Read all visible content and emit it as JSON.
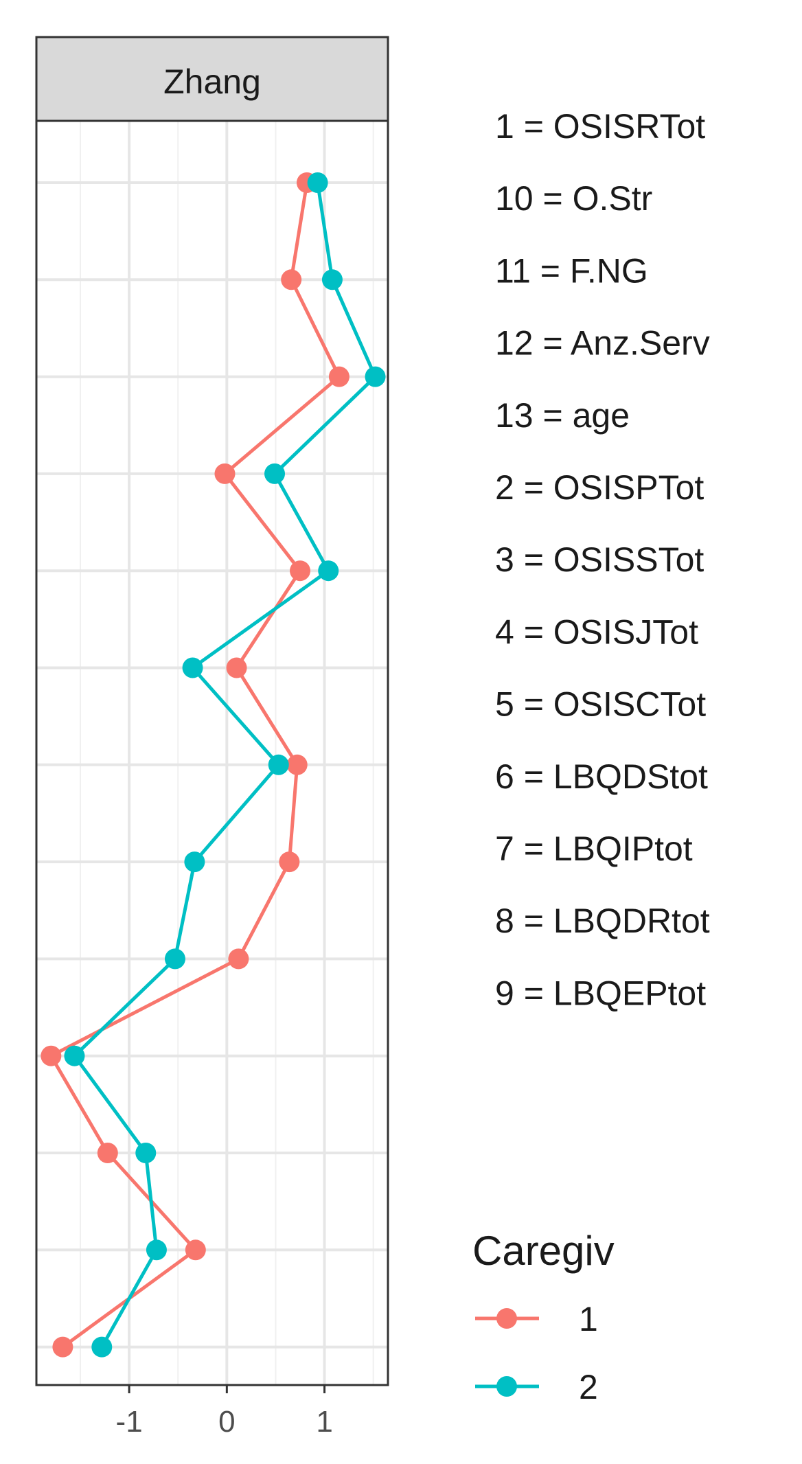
{
  "chart_data": {
    "type": "line",
    "facet_title": "Zhang",
    "orientation": "horizontal-values",
    "xlim": [
      -1.95,
      1.65
    ],
    "x_ticks": [
      -1,
      0,
      1
    ],
    "x_tick_labels": [
      "-1",
      "0",
      "1"
    ],
    "rows": 13,
    "variable_key": [
      "1 = OSISRTot",
      "10 = O.Str",
      "11 = F.NG",
      "12 = Anz.Serv",
      "13 = age",
      "2 = OSISPTot",
      "3 = OSISSTot",
      "4 = OSISJTot",
      "5 = OSISCTot",
      "6 = LBQDStot",
      "7 = LBQIPtot",
      "8 = LBQDRtot",
      "9 = LBQEPtot"
    ],
    "legend_title": "Caregiv",
    "series": [
      {
        "name": "1",
        "color": "#F8766D",
        "values": [
          0.82,
          0.66,
          1.15,
          -0.02,
          0.75,
          0.1,
          0.72,
          0.64,
          0.12,
          -1.8,
          -1.22,
          -0.32,
          -1.68
        ]
      },
      {
        "name": "2",
        "color": "#00BFC4",
        "values": [
          0.93,
          1.08,
          1.52,
          0.49,
          1.04,
          -0.35,
          0.53,
          -0.33,
          -0.53,
          -1.56,
          -0.83,
          -0.72,
          -1.28
        ]
      }
    ]
  }
}
